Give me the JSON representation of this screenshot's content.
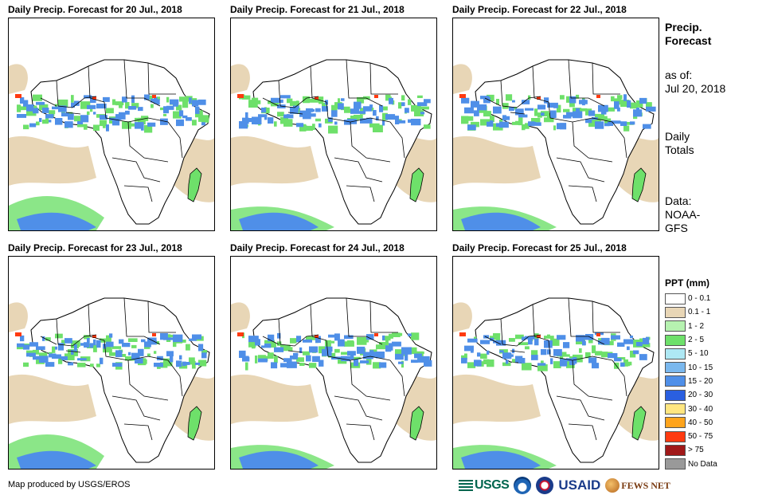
{
  "panels": [
    {
      "title": "Daily Precip. Forecast for 20 Jul., 2018"
    },
    {
      "title": "Daily Precip. Forecast for 21 Jul., 2018"
    },
    {
      "title": "Daily Precip. Forecast for 22 Jul., 2018"
    },
    {
      "title": "Daily Precip. Forecast for 23 Jul., 2018"
    },
    {
      "title": "Daily Precip. Forecast for 24 Jul., 2018"
    },
    {
      "title": "Daily Precip. Forecast for 25 Jul., 2018"
    }
  ],
  "sidebar": {
    "title_line1": "Precip.",
    "title_line2": "Forecast",
    "asof_line1": "as of:",
    "asof_line2": "Jul 20, 2018",
    "daily_line1": "Daily",
    "daily_line2": "Totals",
    "data_line1": "Data:",
    "data_line2": "NOAA-",
    "data_line3": "GFS"
  },
  "legend": {
    "title": "PPT (mm)",
    "items": [
      {
        "label": "0 - 0.1",
        "color": "#ffffff"
      },
      {
        "label": "0.1 - 1",
        "color": "#e8d6b6"
      },
      {
        "label": "1 - 2",
        "color": "#b6f2b0"
      },
      {
        "label": "2 - 5",
        "color": "#6ee06a"
      },
      {
        "label": "5 - 10",
        "color": "#aee8f4"
      },
      {
        "label": "10 - 15",
        "color": "#7ab8ee"
      },
      {
        "label": "15 - 20",
        "color": "#4f8fe8"
      },
      {
        "label": "20 - 30",
        "color": "#2a5fe0"
      },
      {
        "label": "30 - 40",
        "color": "#ffe680"
      },
      {
        "label": "40 - 50",
        "color": "#ffa41c"
      },
      {
        "label": "50 - 75",
        "color": "#ff3a10"
      },
      {
        "label": "> 75",
        "color": "#a01818"
      },
      {
        "label": "No Data",
        "color": "#999999"
      }
    ]
  },
  "footer": {
    "credit": "Map produced by USGS/EROS",
    "logo_usgs": "USGS",
    "logo_usaid": "USAID",
    "logo_fews": "FEWS NET"
  }
}
